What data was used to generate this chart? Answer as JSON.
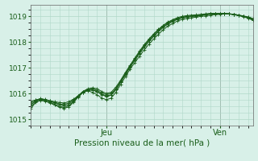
{
  "xlabel": "Pression niveau de la mer( hPa )",
  "bg_color": "#d8f0e8",
  "grid_color": "#b0d8c8",
  "line_color": "#1a5e1a",
  "xlim": [
    0,
    47
  ],
  "ylim": [
    1014.75,
    1019.45
  ],
  "yticks": [
    1015,
    1016,
    1017,
    1018,
    1019
  ],
  "ytick_labels": [
    "1015",
    "1016",
    "1017",
    "1018",
    "1019"
  ],
  "xtick_positions": [
    16,
    40
  ],
  "xtick_labels": [
    "Jeu",
    "Ven"
  ],
  "series": [
    [
      1015.7,
      1015.75,
      1015.78,
      1015.76,
      1015.72,
      1015.68,
      1015.65,
      1015.63,
      1015.68,
      1015.78,
      1015.9,
      1016.05,
      1016.1,
      1016.05,
      1015.95,
      1015.82,
      1015.76,
      1015.82,
      1016.05,
      1016.35,
      1016.65,
      1016.95,
      1017.2,
      1017.45,
      1017.7,
      1017.92,
      1018.12,
      1018.3,
      1018.48,
      1018.62,
      1018.72,
      1018.82,
      1018.88,
      1018.92,
      1018.95,
      1018.97,
      1019.0,
      1019.02,
      1019.05,
      1019.07,
      1019.08,
      1019.1,
      1019.1,
      1019.08,
      1019.05,
      1019.02,
      1018.98,
      1018.92
    ],
    [
      1015.55,
      1015.72,
      1015.78,
      1015.76,
      1015.7,
      1015.63,
      1015.56,
      1015.52,
      1015.58,
      1015.72,
      1015.9,
      1016.08,
      1016.18,
      1016.22,
      1016.18,
      1016.08,
      1016.0,
      1016.05,
      1016.25,
      1016.52,
      1016.82,
      1017.1,
      1017.38,
      1017.65,
      1017.9,
      1018.12,
      1018.32,
      1018.5,
      1018.65,
      1018.78,
      1018.87,
      1018.95,
      1019.0,
      1019.03,
      1019.05,
      1019.06,
      1019.08,
      1019.1,
      1019.12,
      1019.12,
      1019.12,
      1019.12,
      1019.1,
      1019.08,
      1019.05,
      1019.0,
      1018.95,
      1018.88
    ],
    [
      1015.62,
      1015.74,
      1015.8,
      1015.77,
      1015.71,
      1015.65,
      1015.6,
      1015.57,
      1015.63,
      1015.75,
      1015.92,
      1016.07,
      1016.14,
      1016.13,
      1016.07,
      1015.95,
      1015.88,
      1015.93,
      1016.15,
      1016.43,
      1016.73,
      1017.02,
      1017.29,
      1017.55,
      1017.8,
      1018.02,
      1018.22,
      1018.4,
      1018.57,
      1018.7,
      1018.8,
      1018.88,
      1018.94,
      1018.98,
      1019.0,
      1019.02,
      1019.04,
      1019.06,
      1019.09,
      1019.1,
      1019.1,
      1019.11,
      1019.1,
      1019.08,
      1019.05,
      1019.01,
      1018.97,
      1018.9
    ],
    [
      1015.48,
      1015.68,
      1015.75,
      1015.72,
      1015.66,
      1015.58,
      1015.5,
      1015.46,
      1015.52,
      1015.68,
      1015.88,
      1016.05,
      1016.15,
      1016.18,
      1016.12,
      1016.02,
      1015.95,
      1016.0,
      1016.2,
      1016.48,
      1016.78,
      1017.08,
      1017.35,
      1017.62,
      1017.88,
      1018.1,
      1018.3,
      1018.48,
      1018.63,
      1018.76,
      1018.85,
      1018.92,
      1018.97,
      1019.0,
      1019.02,
      1019.04,
      1019.06,
      1019.08,
      1019.1,
      1019.11,
      1019.11,
      1019.11,
      1019.1,
      1019.07,
      1019.04,
      1019.0,
      1018.95,
      1018.87
    ],
    [
      1015.42,
      1015.65,
      1015.73,
      1015.7,
      1015.63,
      1015.55,
      1015.47,
      1015.42,
      1015.48,
      1015.65,
      1015.86,
      1016.03,
      1016.12,
      1016.14,
      1016.08,
      1015.97,
      1015.9,
      1015.95,
      1016.15,
      1016.45,
      1016.75,
      1017.05,
      1017.32,
      1017.58,
      1017.84,
      1018.06,
      1018.27,
      1018.44,
      1018.6,
      1018.72,
      1018.82,
      1018.9,
      1018.95,
      1018.98,
      1019.0,
      1019.02,
      1019.05,
      1019.07,
      1019.09,
      1019.1,
      1019.1,
      1019.1,
      1019.09,
      1019.06,
      1019.03,
      1018.98,
      1018.93,
      1018.85
    ]
  ]
}
